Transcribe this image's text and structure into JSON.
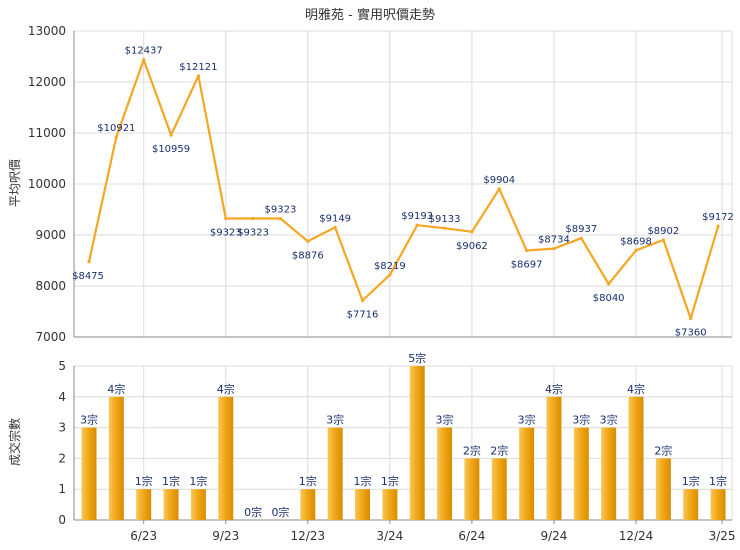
{
  "chart_data": [
    {
      "type": "line",
      "title": "明雅苑 - 實用呎價走勢",
      "ylabel": "平均呎價",
      "xlabel": "",
      "ylim": [
        7000,
        13000
      ],
      "yticks": [
        7000,
        8000,
        9000,
        10000,
        11000,
        12000,
        13000
      ],
      "grid": true,
      "legend": "none",
      "color": "#f5a623",
      "x_tick_labels": [
        "6/23",
        "9/23",
        "12/23",
        "3/24",
        "6/24",
        "9/24",
        "12/24",
        "3/25"
      ],
      "values": [
        8475,
        10921,
        12437,
        10959,
        12121,
        9323,
        9323,
        9323,
        8876,
        9149,
        7716,
        8219,
        9193,
        9133,
        9062,
        9904,
        8697,
        8734,
        8937,
        8040,
        8698,
        8902,
        7360,
        9172
      ],
      "point_labels": [
        "$8475",
        "$10921",
        "$12437",
        "$10959",
        "$12121",
        "$9323",
        "$9323",
        "$9323",
        "$8876",
        "$9149",
        "$7716",
        "$8219",
        "$9193",
        "$9133",
        "$9062",
        "$9904",
        "$8697",
        "$8734",
        "$8937",
        "$8040",
        "$8698",
        "$8902",
        "$7360",
        "$9172"
      ]
    },
    {
      "type": "bar",
      "ylabel": "成交宗數",
      "xlabel": "",
      "ylim": [
        0,
        5
      ],
      "yticks": [
        0,
        1,
        2,
        3,
        4,
        5
      ],
      "grid": true,
      "legend": "none",
      "color": "#f0a818",
      "x_tick_labels": [
        "6/23",
        "9/23",
        "12/23",
        "3/24",
        "6/24",
        "9/24",
        "12/24",
        "3/25"
      ],
      "values": [
        3,
        4,
        1,
        1,
        1,
        4,
        0,
        0,
        1,
        3,
        1,
        1,
        5,
        3,
        2,
        2,
        3,
        4,
        3,
        3,
        4,
        2,
        1,
        1
      ],
      "bar_labels": [
        "3宗",
        "4宗",
        "1宗",
        "1宗",
        "1宗",
        "4宗",
        "0宗",
        "0宗",
        "1宗",
        "3宗",
        "1宗",
        "1宗",
        "5宗",
        "3宗",
        "2宗",
        "2宗",
        "3宗",
        "4宗",
        "3宗",
        "3宗",
        "4宗",
        "2宗",
        "1宗",
        "1宗"
      ]
    }
  ]
}
